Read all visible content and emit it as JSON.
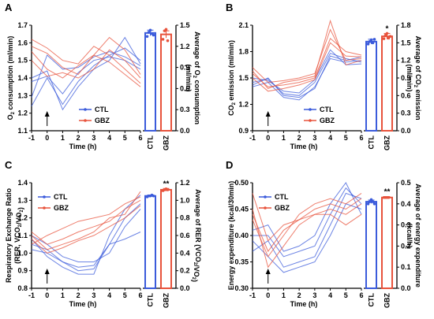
{
  "chart_data": [
    {
      "type": "line",
      "panel": "A",
      "xlabel": "Time (h)",
      "ylabel_left_main": "O",
      "ylabel_left_sub": "2",
      "ylabel_left_rest": " consumption (ml/min)",
      "ylabel_right_main": "Average of O",
      "ylabel_right_sub": "2",
      "ylabel_right_rest": " consumption",
      "ylabel_right_line2": "(ml/min)",
      "x": [
        -1,
        0,
        1,
        2,
        3,
        4,
        5,
        6
      ],
      "xlim": [
        -1,
        6
      ],
      "ylim": [
        1.1,
        1.7
      ],
      "yticks": [
        1.1,
        1.2,
        1.3,
        1.4,
        1.5,
        1.6,
        1.7
      ],
      "y2lim": [
        0,
        1.5
      ],
      "y2ticks": [
        0.0,
        0.3,
        0.6,
        0.9,
        1.2,
        1.5
      ],
      "arrow_x": 0,
      "series": [
        {
          "name": "CTL",
          "color": "#3b5bdb",
          "lines": [
            [
              1.29,
              1.53,
              1.45,
              1.46,
              1.52,
              1.55,
              1.52,
              1.47
            ],
            [
              1.38,
              1.41,
              1.31,
              1.43,
              1.5,
              1.52,
              1.5,
              1.45
            ],
            [
              1.24,
              1.4,
              1.25,
              1.38,
              1.47,
              1.53,
              1.57,
              1.5
            ],
            [
              1.4,
              1.44,
              1.22,
              1.35,
              1.45,
              1.5,
              1.63,
              1.48
            ]
          ]
        },
        {
          "name": "GBZ",
          "color": "#e8533c",
          "lines": [
            [
              1.62,
              1.57,
              1.5,
              1.48,
              1.58,
              1.53,
              1.45,
              1.37
            ],
            [
              1.55,
              1.45,
              1.4,
              1.47,
              1.53,
              1.49,
              1.42,
              1.35
            ],
            [
              1.58,
              1.54,
              1.46,
              1.42,
              1.53,
              1.63,
              1.56,
              1.42
            ],
            [
              1.5,
              1.41,
              1.43,
              1.4,
              1.45,
              1.56,
              1.5,
              1.4
            ]
          ]
        }
      ],
      "bars": {
        "categories": [
          "CTL",
          "GBZ"
        ],
        "values": [
          1.39,
          1.37
        ],
        "errors": [
          0.04,
          0.05
        ],
        "points": [
          [
            1.34,
            1.4,
            1.43,
            1.38,
            1.36
          ],
          [
            1.3,
            1.42,
            1.44,
            1.28
          ]
        ],
        "significance": [
          "",
          ""
        ]
      },
      "legend": [
        "CTL",
        "GBZ"
      ]
    },
    {
      "type": "line",
      "panel": "B",
      "xlabel": "Time (h)",
      "ylabel_left_main": "CO",
      "ylabel_left_sub": "2",
      "ylabel_left_rest": " emission (ml/min)",
      "ylabel_right_main": "Average of CO",
      "ylabel_right_sub": "2",
      "ylabel_right_rest": " emission",
      "ylabel_right_line2": "(ml/min)",
      "x": [
        -1,
        0,
        1,
        2,
        3,
        4,
        5,
        6
      ],
      "xlim": [
        -1,
        6
      ],
      "ylim": [
        0.9,
        2.1
      ],
      "yticks": [
        0.9,
        1.2,
        1.5,
        1.8,
        2.1
      ],
      "y2lim": [
        0,
        1.8
      ],
      "y2ticks": [
        0.0,
        0.3,
        0.6,
        0.9,
        1.2,
        1.5,
        1.8
      ],
      "arrow_x": 0,
      "series": [
        {
          "name": "CTL",
          "color": "#3b5bdb",
          "lines": [
            [
              1.45,
              1.49,
              1.32,
              1.3,
              1.45,
              1.78,
              1.72,
              1.68
            ],
            [
              1.4,
              1.45,
              1.28,
              1.25,
              1.4,
              1.72,
              1.68,
              1.7
            ],
            [
              1.5,
              1.47,
              1.35,
              1.33,
              1.48,
              1.82,
              1.65,
              1.66
            ],
            [
              1.42,
              1.5,
              1.3,
              1.28,
              1.38,
              1.75,
              1.7,
              1.74
            ]
          ]
        },
        {
          "name": "GBZ",
          "color": "#e8533c",
          "lines": [
            [
              1.62,
              1.45,
              1.47,
              1.5,
              1.55,
              2.05,
              1.7,
              1.72
            ],
            [
              1.55,
              1.4,
              1.42,
              1.45,
              1.5,
              1.95,
              1.8,
              1.76
            ],
            [
              1.58,
              1.38,
              1.45,
              1.48,
              1.52,
              2.15,
              1.65,
              1.7
            ],
            [
              1.5,
              1.35,
              1.38,
              1.42,
              1.48,
              1.9,
              1.75,
              1.74
            ]
          ]
        }
      ],
      "bars": {
        "categories": [
          "CTL",
          "GBZ"
        ],
        "values": [
          1.52,
          1.61
        ],
        "errors": [
          0.04,
          0.05
        ],
        "points": [
          [
            1.48,
            1.52,
            1.55,
            1.5,
            1.56
          ],
          [
            1.57,
            1.63,
            1.66,
            1.58,
            1.61
          ]
        ],
        "significance": [
          "",
          "*"
        ]
      },
      "legend": [
        "CTL",
        "GBZ"
      ]
    },
    {
      "type": "line",
      "panel": "C",
      "xlabel": "Time (h)",
      "ylabel_left_main": "Respiratory Exchange Ratio",
      "ylabel_left_line2_main": "(RER, VCO",
      "ylabel_left_line2_sub1": "2",
      "ylabel_left_line2_mid": "/VO",
      "ylabel_left_line2_sub2": "2",
      "ylabel_left_line2_end": ")",
      "ylabel_right_main": "Average of RER (VCO",
      "ylabel_right_sub1": "2",
      "ylabel_right_mid": "/VO",
      "ylabel_right_sub2": "2",
      "ylabel_right_end": ")",
      "x": [
        -1,
        0,
        1,
        2,
        3,
        4,
        5,
        6
      ],
      "xlim": [
        -1,
        6
      ],
      "ylim": [
        0.8,
        1.4
      ],
      "yticks": [
        0.8,
        0.9,
        1.0,
        1.1,
        1.2,
        1.3,
        1.4
      ],
      "y2lim": [
        0,
        1.2
      ],
      "y2ticks": [
        0.0,
        0.2,
        0.4,
        0.6,
        0.8,
        1.0,
        1.2
      ],
      "arrow_x": 0,
      "series": [
        {
          "name": "CTL",
          "color": "#3b5bdb",
          "lines": [
            [
              1.05,
              1.02,
              0.95,
              0.92,
              0.93,
              1.05,
              1.2,
              1.28
            ],
            [
              1.08,
              0.98,
              0.92,
              0.88,
              0.88,
              1.1,
              1.25,
              1.33
            ],
            [
              1.1,
              1.05,
              0.98,
              0.95,
              0.95,
              1.0,
              1.15,
              1.25
            ],
            [
              1.02,
              1.0,
              0.95,
              0.9,
              0.91,
              1.05,
              1.08,
              1.12
            ]
          ]
        },
        {
          "name": "GBZ",
          "color": "#e8533c",
          "lines": [
            [
              1.12,
              1.05,
              1.08,
              1.12,
              1.15,
              1.18,
              1.25,
              1.3
            ],
            [
              1.1,
              1.02,
              1.05,
              1.08,
              1.12,
              1.2,
              1.22,
              1.35
            ],
            [
              1.05,
              1.1,
              1.14,
              1.18,
              1.2,
              1.22,
              1.28,
              1.32
            ],
            [
              1.08,
              1.0,
              1.03,
              1.07,
              1.1,
              1.15,
              1.2,
              1.27
            ]
          ]
        }
      ],
      "bars": {
        "categories": [
          "CTL",
          "GBZ"
        ],
        "values": [
          1.05,
          1.12
        ],
        "errors": [
          0.01,
          0.015
        ],
        "points": [
          [
            1.04,
            1.05,
            1.05,
            1.06,
            1.05
          ],
          [
            1.11,
            1.12,
            1.13,
            1.12
          ]
        ],
        "significance": [
          "",
          "**"
        ]
      },
      "legend": [
        "CTL",
        "GBZ"
      ]
    },
    {
      "type": "line",
      "panel": "D",
      "xlabel": "Time (h)",
      "ylabel_left_main": "Energy expenditure (kcal/30min)",
      "ylabel_right_main": "Average of energy expenditure",
      "ylabel_right_line2": "(kcal/h)",
      "x": [
        -1,
        0,
        1,
        2,
        3,
        4,
        5,
        6
      ],
      "xlim": [
        -1,
        6
      ],
      "ylim": [
        0.3,
        0.5
      ],
      "yticks": [
        0.3,
        0.35,
        0.4,
        0.45,
        0.5
      ],
      "ytick_labels": [
        "0.30",
        "0.35",
        "0.40",
        "0.45",
        "0.50"
      ],
      "y2lim": [
        0,
        0.5
      ],
      "y2ticks": [
        0.0,
        0.1,
        0.2,
        0.3,
        0.4,
        0.5
      ],
      "arrow_x": 0,
      "series": [
        {
          "name": "CTL",
          "color": "#3b5bdb",
          "lines": [
            [
              0.37,
              0.39,
              0.34,
              0.35,
              0.36,
              0.42,
              0.48,
              0.47
            ],
            [
              0.39,
              0.36,
              0.33,
              0.34,
              0.35,
              0.4,
              0.46,
              0.45
            ],
            [
              0.4,
              0.4,
              0.36,
              0.37,
              0.38,
              0.44,
              0.49,
              0.46
            ],
            [
              0.41,
              0.42,
              0.37,
              0.38,
              0.4,
              0.46,
              0.5,
              0.44
            ]
          ]
        },
        {
          "name": "GBZ",
          "color": "#e8533c",
          "lines": [
            [
              0.48,
              0.39,
              0.42,
              0.43,
              0.44,
              0.45,
              0.44,
              0.46
            ],
            [
              0.43,
              0.36,
              0.4,
              0.44,
              0.46,
              0.47,
              0.46,
              0.48
            ],
            [
              0.45,
              0.34,
              0.38,
              0.42,
              0.44,
              0.44,
              0.42,
              0.44
            ],
            [
              0.44,
              0.37,
              0.41,
              0.43,
              0.45,
              0.46,
              0.45,
              0.47
            ]
          ]
        }
      ],
      "bars": {
        "categories": [
          "CTL",
          "GBZ"
        ],
        "values": [
          0.41,
          0.43
        ],
        "errors": [
          0.008,
          0.004
        ],
        "points": [
          [
            0.4,
            0.41,
            0.42,
            0.41,
            0.4
          ],
          [
            0.43,
            0.43,
            0.43,
            0.43
          ]
        ],
        "significance": [
          "",
          "**"
        ]
      },
      "legend": [
        "CTL",
        "GBZ"
      ]
    }
  ]
}
